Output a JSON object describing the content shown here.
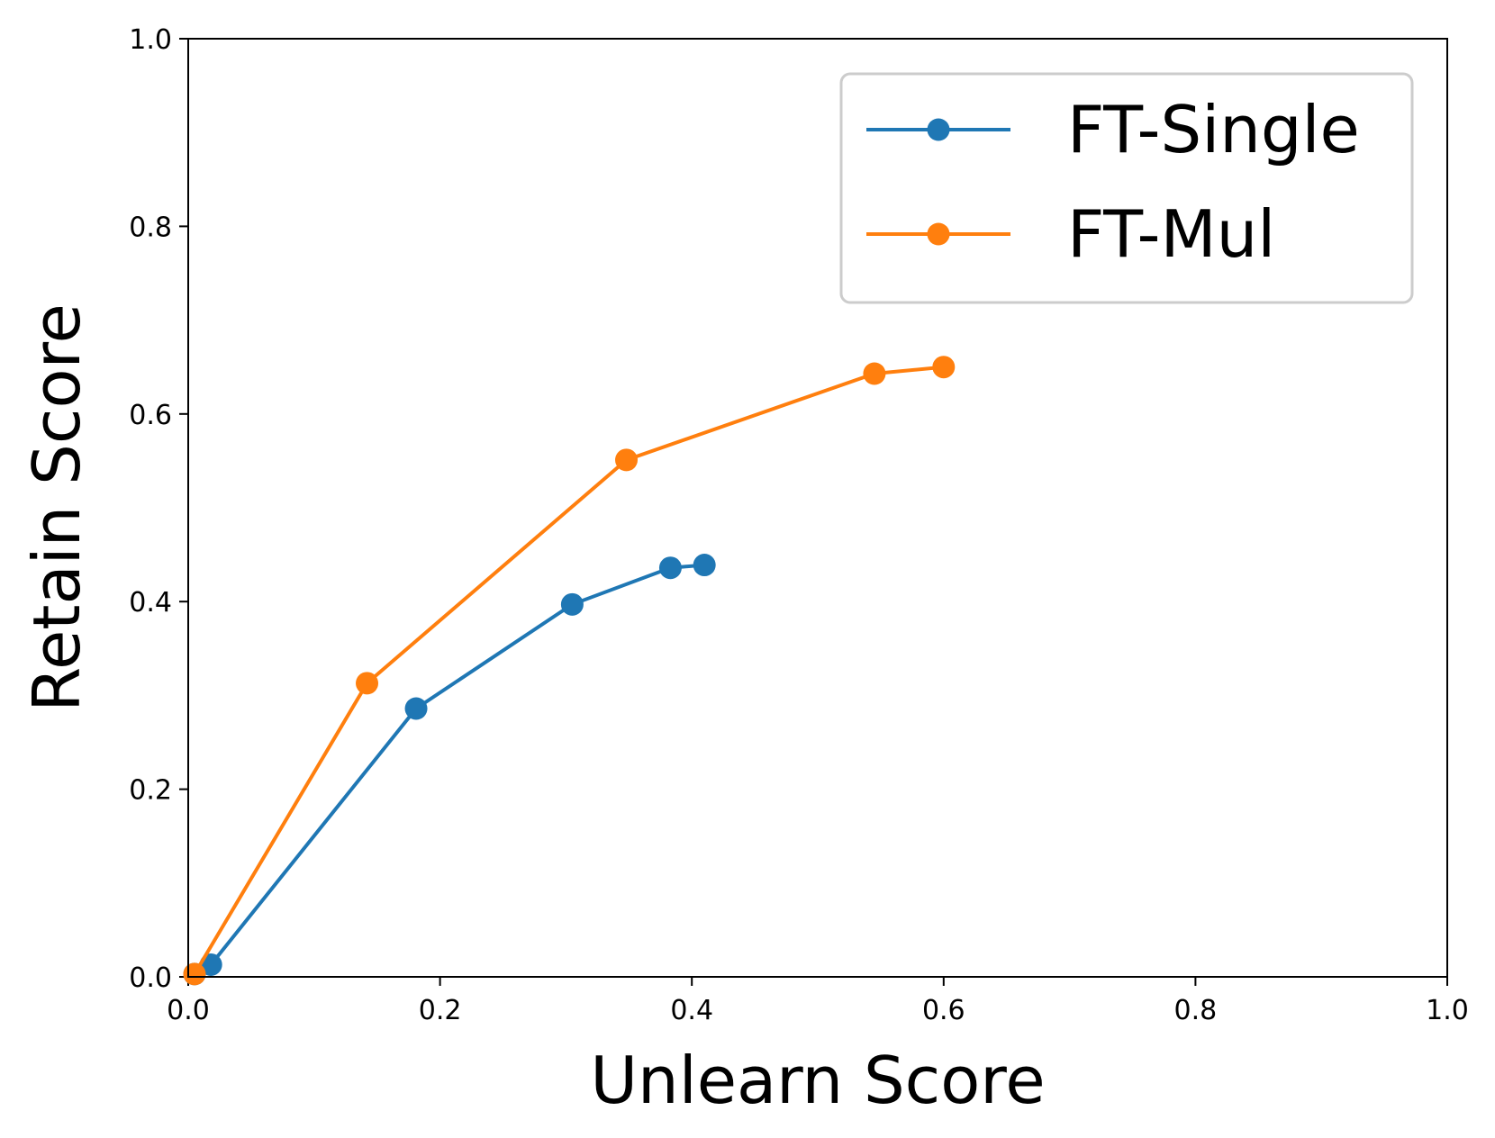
{
  "chart_data": {
    "type": "line",
    "title": "",
    "xlabel": "Unlearn Score",
    "ylabel": "Retain Score",
    "xlim": [
      0.0,
      1.0
    ],
    "ylim": [
      0.0,
      1.0
    ],
    "xticks": [
      "0.0",
      "0.2",
      "0.4",
      "0.6",
      "0.8",
      "1.0"
    ],
    "yticks": [
      "0.0",
      "0.2",
      "0.4",
      "0.6",
      "0.8",
      "1.0"
    ],
    "grid": false,
    "legend_position": "top-right",
    "series": [
      {
        "name": "FT-Single",
        "color": "#1f77b4",
        "marker": "circle",
        "x": [
          0.005,
          0.018,
          0.181,
          0.305,
          0.383,
          0.41
        ],
        "y": [
          0.003,
          0.013,
          0.286,
          0.397,
          0.436,
          0.439
        ]
      },
      {
        "name": "FT-Mul",
        "color": "#ff7f0e",
        "marker": "circle",
        "x": [
          0.005,
          0.142,
          0.348,
          0.545,
          0.6
        ],
        "y": [
          0.003,
          0.313,
          0.551,
          0.643,
          0.65
        ]
      }
    ]
  }
}
